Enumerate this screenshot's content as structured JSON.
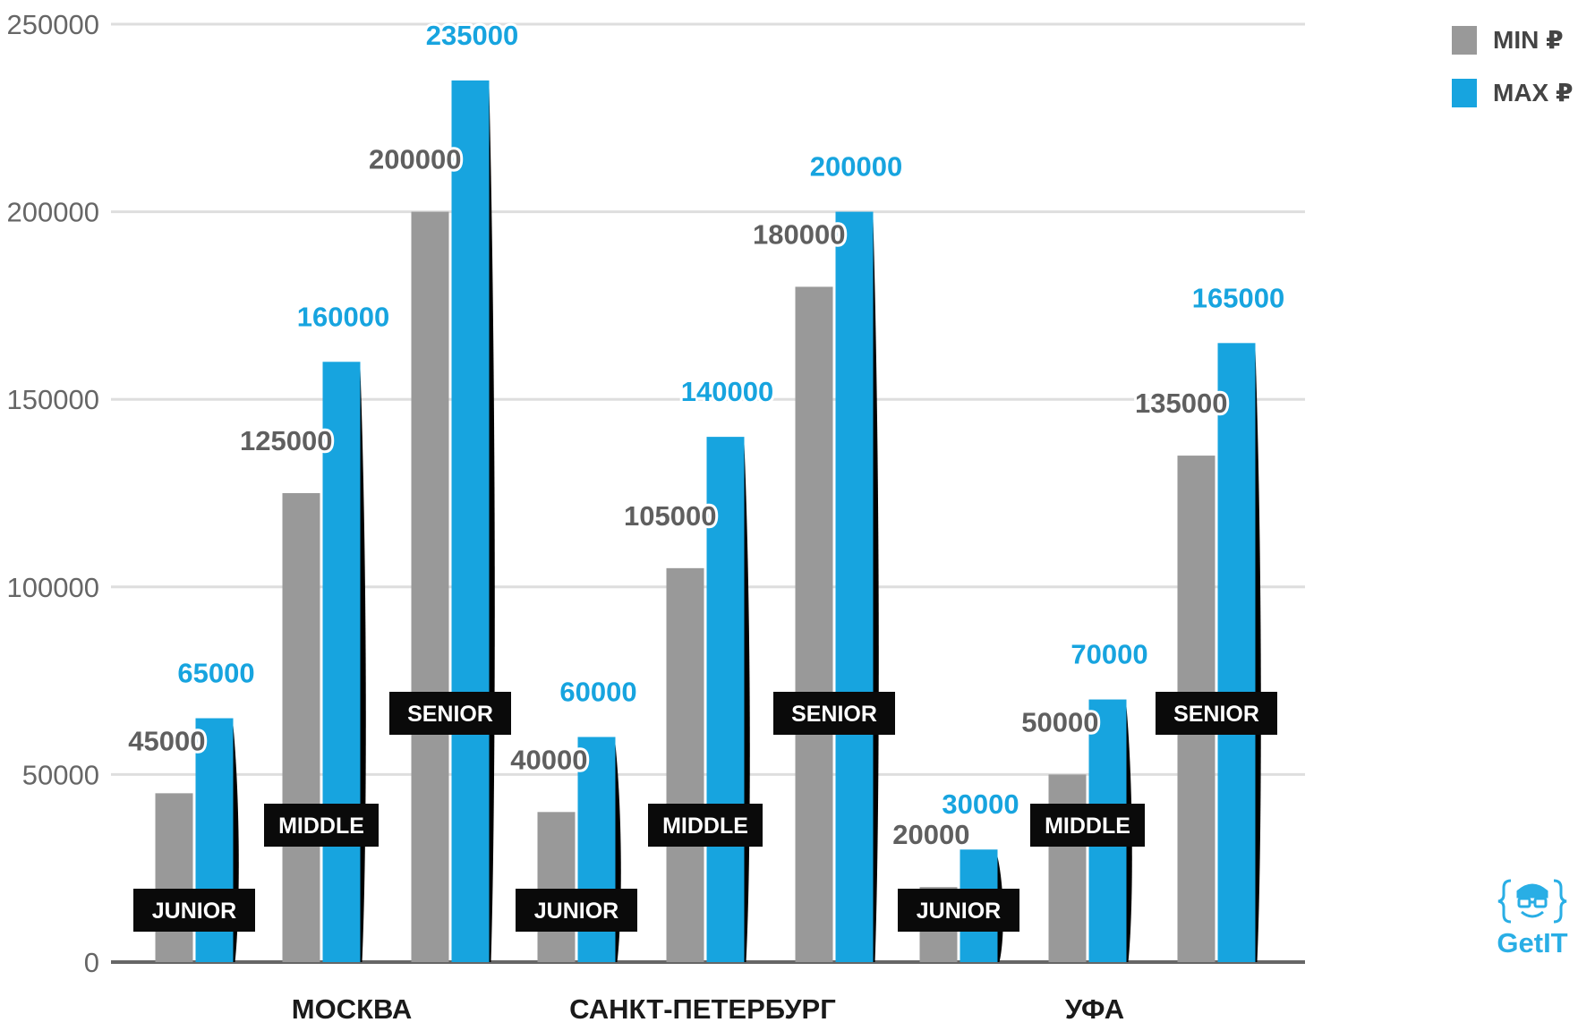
{
  "chart_data": {
    "type": "bar",
    "title": "",
    "xlabel": "",
    "ylabel": "",
    "ylim": [
      0,
      250000
    ],
    "yticks": [
      "0",
      "50000",
      "100000",
      "150000",
      "200000",
      "250000"
    ],
    "grid": true,
    "legend_position": "top-right",
    "groups": [
      {
        "city": "МОСКВА",
        "levels": [
          {
            "level": "JUNIOR",
            "min": 45000,
            "max": 65000
          },
          {
            "level": "MIDDLE",
            "min": 125000,
            "max": 160000
          },
          {
            "level": "SENIOR",
            "min": 200000,
            "max": 235000
          }
        ]
      },
      {
        "city": "САНКТ-ПЕТЕРБУРГ",
        "levels": [
          {
            "level": "JUNIOR",
            "min": 40000,
            "max": 60000
          },
          {
            "level": "MIDDLE",
            "min": 105000,
            "max": 140000
          },
          {
            "level": "SENIOR",
            "min": 180000,
            "max": 200000
          }
        ]
      },
      {
        "city": "УФА",
        "levels": [
          {
            "level": "JUNIOR",
            "min": 20000,
            "max": 30000
          },
          {
            "level": "MIDDLE",
            "min": 50000,
            "max": 70000
          },
          {
            "level": "SENIOR",
            "min": 135000,
            "max": 165000
          }
        ]
      }
    ],
    "series": [
      {
        "name": "MIN ₽",
        "key": "min",
        "color": "#999999"
      },
      {
        "name": "MAX ₽",
        "key": "max",
        "color": "#17a4df"
      }
    ]
  },
  "logo": {
    "text": "GetIT",
    "icon": "braces-face-icon",
    "color": "#29aee5"
  }
}
